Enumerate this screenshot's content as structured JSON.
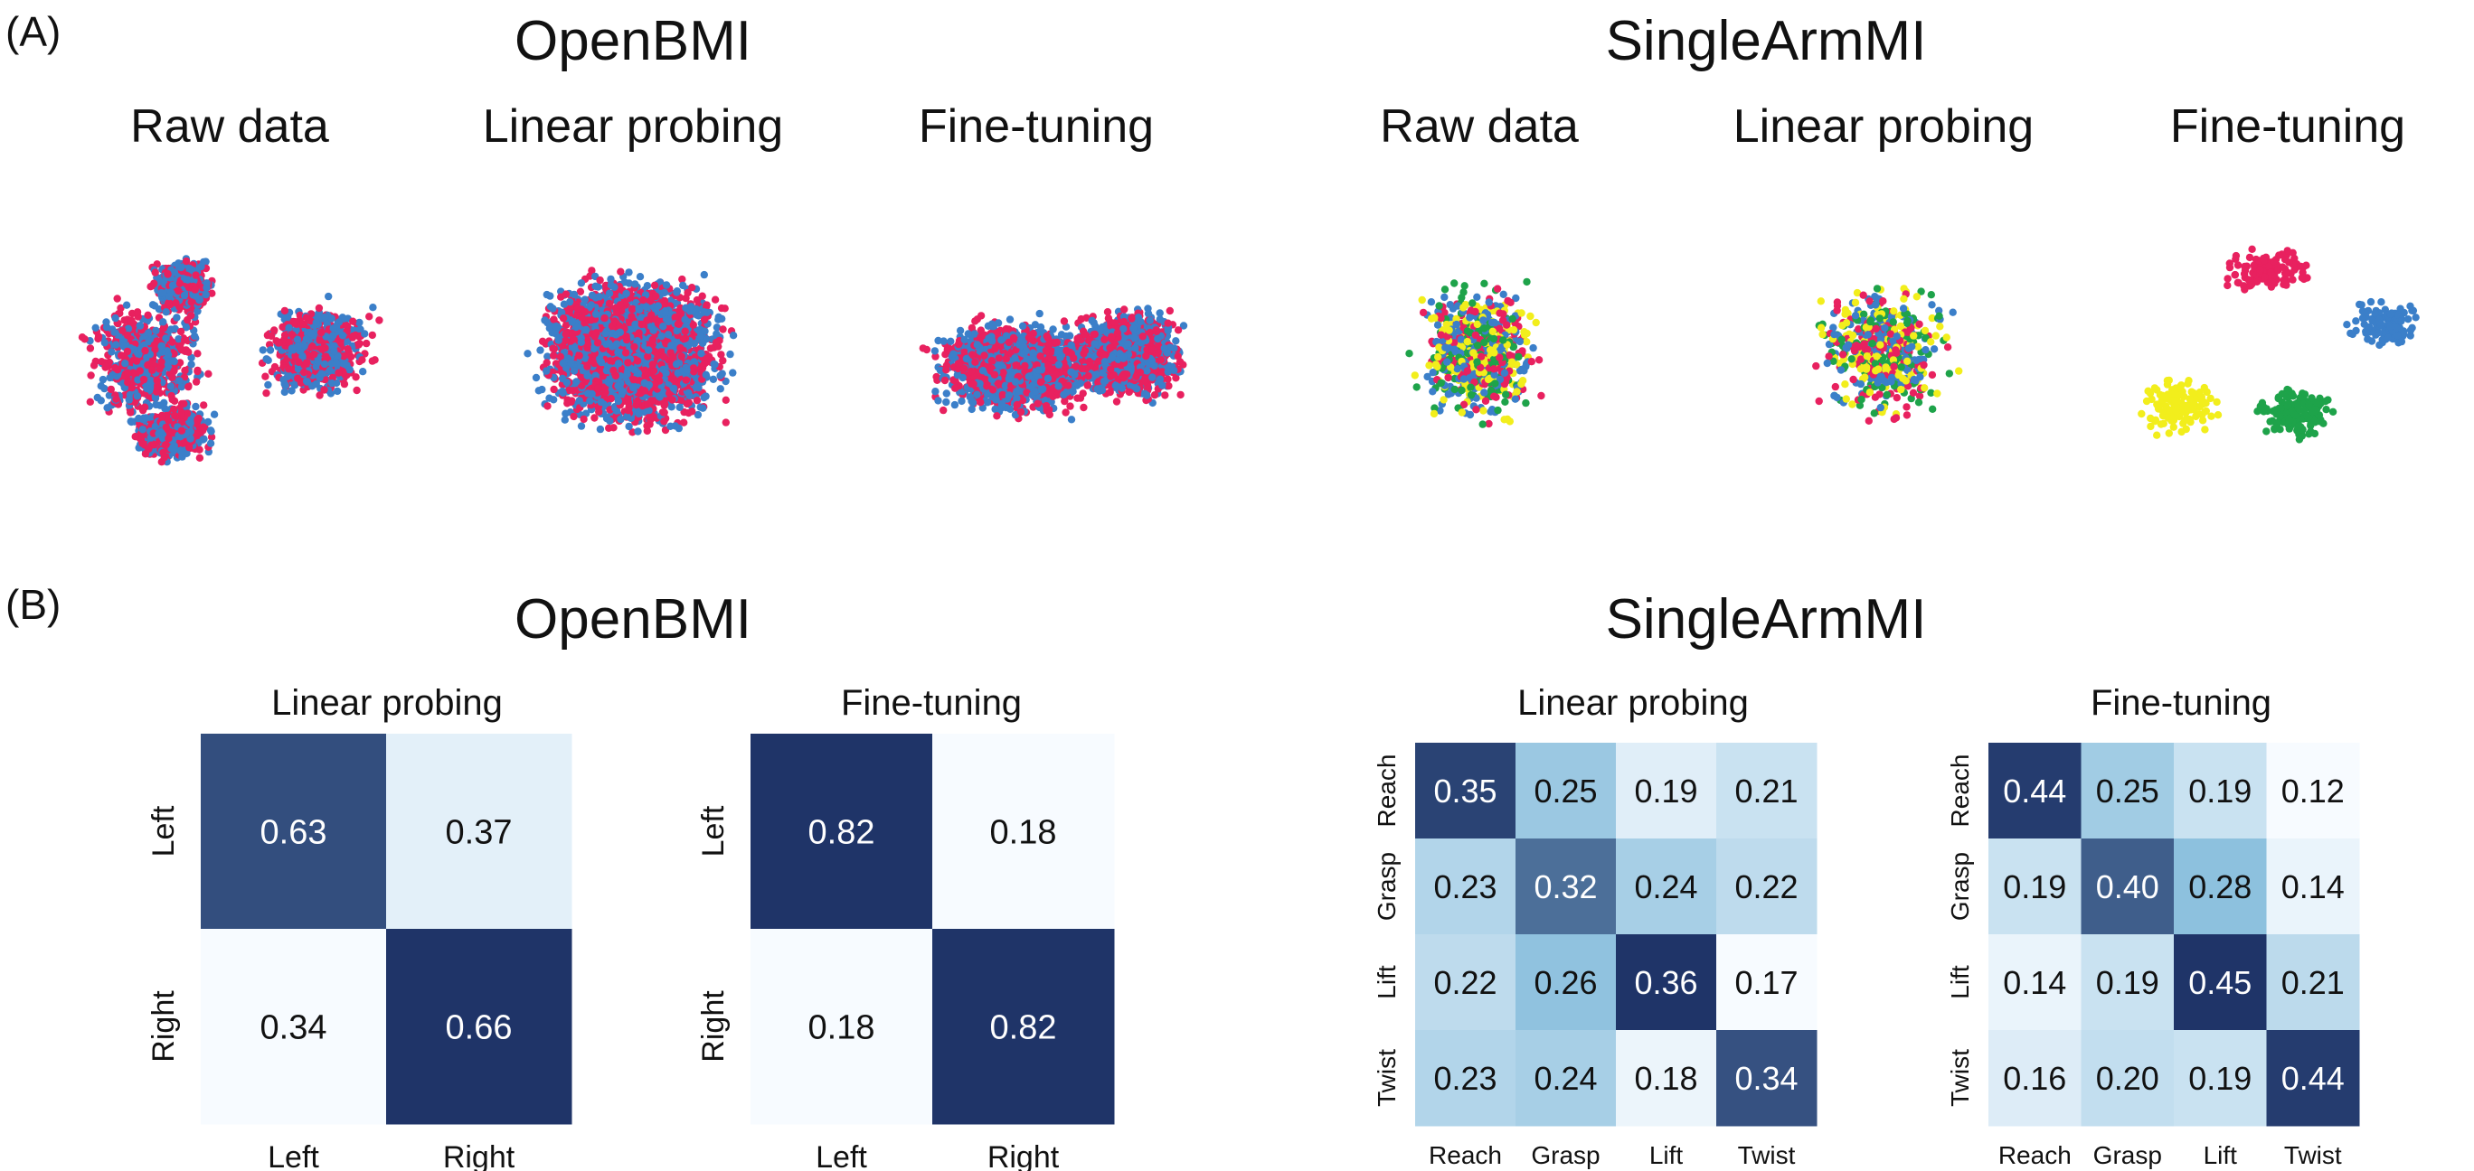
{
  "panel_labels": {
    "a": "(A)",
    "b": "(B)"
  },
  "tsne": {
    "groups": [
      {
        "title": "OpenBMI",
        "subtitles": [
          "Raw data",
          "Linear probing",
          "Fine-tuning"
        ]
      },
      {
        "title": "SingleArmMI",
        "subtitles": [
          "Raw data",
          "Linear probing",
          "Fine-tuning"
        ]
      }
    ]
  },
  "confusion": {
    "groups": [
      {
        "title": "OpenBMI"
      },
      {
        "title": "SingleArmMI"
      }
    ]
  },
  "colors": {
    "class_red": "#e8215f",
    "class_blue": "#3b7fc9",
    "class_green": "#1ea34a",
    "class_yellow": "#f2ee1c",
    "cmap_light": "#f7fbff",
    "cmap_dark": "#1f3468"
  },
  "chart_data": [
    {
      "type": "heatmap",
      "title": "Linear probing",
      "rows": [
        "Left",
        "Right"
      ],
      "cols": [
        "Left",
        "Right"
      ],
      "values": [
        [
          0.63,
          0.37
        ],
        [
          0.34,
          0.66
        ]
      ]
    },
    {
      "type": "heatmap",
      "title": "Fine-tuning",
      "rows": [
        "Left",
        "Right"
      ],
      "cols": [
        "Left",
        "Right"
      ],
      "values": [
        [
          0.82,
          0.18
        ],
        [
          0.18,
          0.82
        ]
      ]
    },
    {
      "type": "heatmap",
      "title": "Linear probing",
      "rows": [
        "Reach",
        "Grasp",
        "Lift",
        "Twist"
      ],
      "cols": [
        "Reach",
        "Grasp",
        "Lift",
        "Twist"
      ],
      "values": [
        [
          0.35,
          0.25,
          0.19,
          0.21
        ],
        [
          0.23,
          0.32,
          0.24,
          0.22
        ],
        [
          0.22,
          0.26,
          0.36,
          0.17
        ],
        [
          0.23,
          0.24,
          0.18,
          0.34
        ]
      ]
    },
    {
      "type": "heatmap",
      "title": "Fine-tuning",
      "rows": [
        "Reach",
        "Grasp",
        "Lift",
        "Twist"
      ],
      "cols": [
        "Reach",
        "Grasp",
        "Lift",
        "Twist"
      ],
      "values": [
        [
          0.44,
          0.25,
          0.19,
          0.12
        ],
        [
          0.19,
          0.4,
          0.28,
          0.14
        ],
        [
          0.14,
          0.19,
          0.45,
          0.21
        ],
        [
          0.16,
          0.2,
          0.19,
          0.44
        ]
      ]
    }
  ]
}
